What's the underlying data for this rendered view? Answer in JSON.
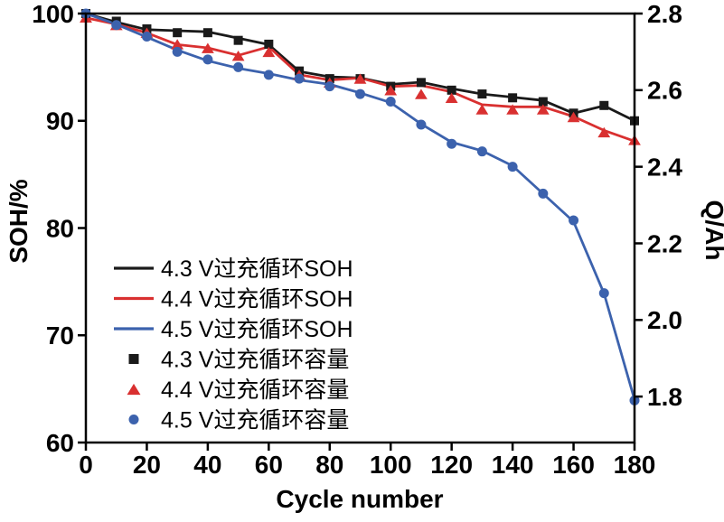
{
  "chart_data": {
    "type": "line+scatter",
    "title": "",
    "xlabel": "Cycle number",
    "ylabel_left": "SOH/%",
    "ylabel_right": "Q/Ah",
    "xlim": [
      0,
      180
    ],
    "ylim_left": [
      60,
      100
    ],
    "nominal_capacity_ah": 2.8,
    "x_ticks": [
      0,
      20,
      40,
      60,
      80,
      100,
      120,
      140,
      160,
      180
    ],
    "y_ticks_left": [
      60,
      70,
      80,
      90,
      100
    ],
    "y_ticks_right": [
      1.8,
      2.0,
      2.2,
      2.4,
      2.6,
      2.8
    ],
    "grid": false,
    "legend_position": "inside-left-bottom",
    "x": [
      0,
      10,
      20,
      30,
      40,
      50,
      60,
      70,
      80,
      90,
      100,
      110,
      120,
      130,
      140,
      150,
      160,
      170,
      180
    ],
    "series": [
      {
        "name": "4.3 V过充循环SOH",
        "type": "line",
        "axis": "left",
        "color": "#1a1a1a",
        "values": [
          100,
          99.2,
          98.5,
          98.4,
          98.3,
          97.7,
          97.1,
          94.6,
          94.1,
          94.0,
          93.4,
          93.6,
          93.0,
          92.5,
          92.2,
          91.9,
          90.7,
          91.4,
          90.0
        ]
      },
      {
        "name": "4.4 V过充循环SOH",
        "type": "line",
        "axis": "left",
        "color": "#d93030",
        "values": [
          99.6,
          99.0,
          98.2,
          97.1,
          96.8,
          96.1,
          96.9,
          94.3,
          93.8,
          94.0,
          93.2,
          93.3,
          92.7,
          91.5,
          91.3,
          91.3,
          90.4,
          89.1,
          88.1
        ]
      },
      {
        "name": "4.5 V过充循环SOH",
        "type": "line",
        "axis": "left",
        "color": "#3c62ad",
        "values": [
          100,
          99.0,
          97.8,
          96.6,
          95.6,
          94.9,
          94.4,
          93.8,
          93.4,
          92.6,
          91.7,
          89.7,
          88.0,
          87.2,
          85.8,
          83.2,
          80.6,
          73.9,
          64.0
        ]
      },
      {
        "name": "4.3 V过充循环容量",
        "type": "scatter",
        "marker": "square",
        "axis": "right",
        "color": "#1a1a1a",
        "values": [
          2.8,
          2.78,
          2.76,
          2.75,
          2.75,
          2.73,
          2.72,
          2.65,
          2.63,
          2.63,
          2.61,
          2.62,
          2.6,
          2.59,
          2.58,
          2.57,
          2.54,
          2.56,
          2.52
        ]
      },
      {
        "name": "4.4 V过充循环容量",
        "type": "scatter",
        "marker": "triangle",
        "axis": "right",
        "color": "#d93030",
        "values": [
          2.79,
          2.77,
          2.75,
          2.72,
          2.71,
          2.69,
          2.7,
          2.64,
          2.62,
          2.63,
          2.6,
          2.59,
          2.58,
          2.55,
          2.55,
          2.55,
          2.53,
          2.49,
          2.47
        ]
      },
      {
        "name": "4.5 V过充循环容量",
        "type": "scatter",
        "marker": "circle",
        "axis": "right",
        "color": "#3c62ad",
        "values": [
          2.8,
          2.77,
          2.74,
          2.7,
          2.68,
          2.66,
          2.64,
          2.63,
          2.61,
          2.59,
          2.57,
          2.51,
          2.46,
          2.44,
          2.4,
          2.33,
          2.26,
          2.07,
          1.79
        ]
      }
    ]
  }
}
